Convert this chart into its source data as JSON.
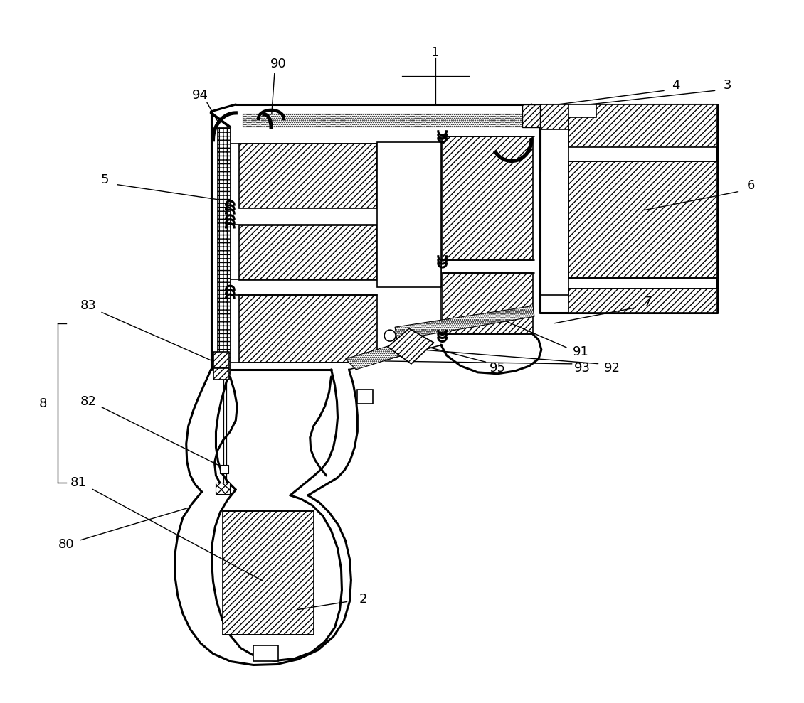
{
  "bg_color": "#ffffff",
  "line_color": "#000000",
  "fig_width": 11.3,
  "fig_height": 9.89,
  "dpi": 100
}
